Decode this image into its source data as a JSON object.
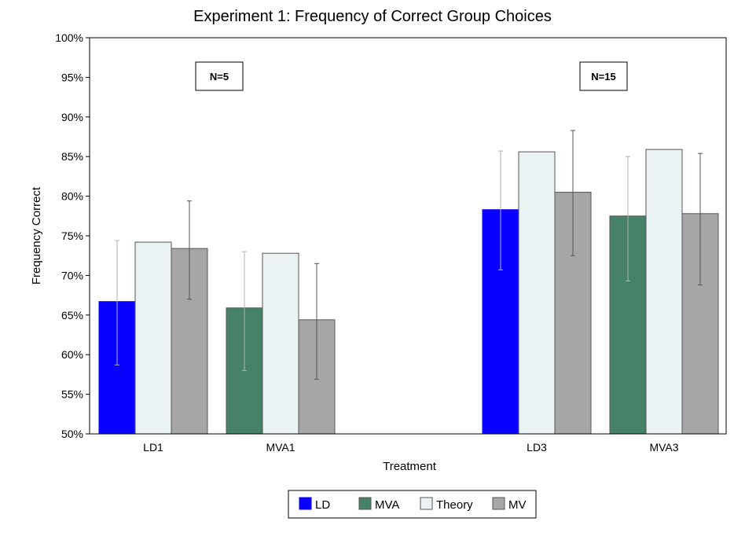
{
  "chart_data": {
    "type": "bar",
    "title": "Experiment 1: Frequency of Correct Group Choices",
    "xlabel": "Treatment",
    "ylabel": "Frequency Correct",
    "ylim": [
      50,
      100
    ],
    "yticks": [
      50,
      55,
      60,
      65,
      70,
      75,
      80,
      85,
      90,
      95,
      100
    ],
    "ytick_labels": [
      "50%",
      "55%",
      "60%",
      "65%",
      "70%",
      "75%",
      "80%",
      "85%",
      "90%",
      "95%",
      "100%"
    ],
    "categories": [
      "LD1",
      "MVA1",
      "LD3",
      "MVA3"
    ],
    "series": [
      {
        "name": "LD",
        "color": "#0a00ff",
        "values": [
          66.7,
          null,
          78.3,
          null
        ],
        "err_low": [
          58.7,
          null,
          70.7,
          null
        ],
        "err_high": [
          74.4,
          null,
          85.7,
          null
        ]
      },
      {
        "name": "MVA",
        "color": "#468268",
        "values": [
          null,
          65.9,
          null,
          77.5
        ],
        "err_low": [
          null,
          58.0,
          null,
          69.3
        ],
        "err_high": [
          null,
          73.0,
          null,
          85.0
        ]
      },
      {
        "name": "Theory",
        "color": "#eaf2f4",
        "values": [
          74.2,
          72.8,
          85.6,
          85.9
        ],
        "err_low": [
          null,
          null,
          null,
          null
        ],
        "err_high": [
          null,
          null,
          null,
          null
        ]
      },
      {
        "name": "MV",
        "color": "#a6a6a6",
        "values": [
          73.4,
          64.4,
          80.5,
          77.8
        ],
        "err_low": [
          67.0,
          56.9,
          72.5,
          68.8
        ],
        "err_high": [
          79.4,
          71.5,
          88.3,
          85.4
        ]
      }
    ],
    "annotations": [
      "N=5",
      "N=15"
    ],
    "legend": [
      "LD",
      "MVA",
      "Theory",
      "MV"
    ],
    "legend_position": "bottom",
    "grid": false
  }
}
